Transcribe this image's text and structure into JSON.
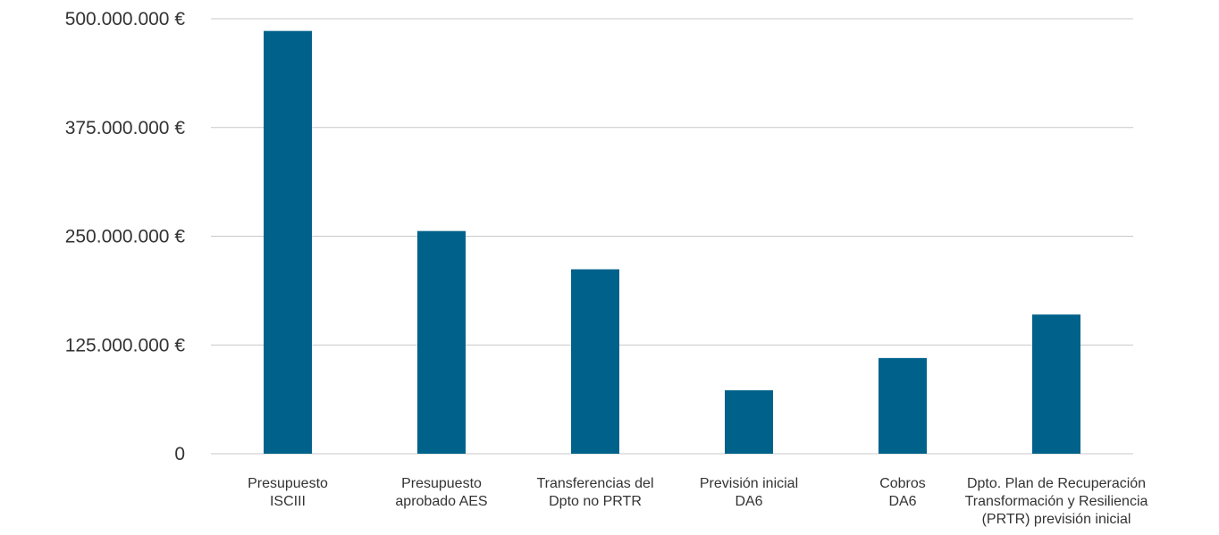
{
  "chart_data": {
    "type": "bar",
    "categories": [
      [
        "Presupuesto",
        "ISCIII"
      ],
      [
        "Presupuesto",
        "aprobado AES"
      ],
      [
        "Transferencias del",
        "Dpto no PRTR"
      ],
      [
        "Previsión inicial",
        "DA6"
      ],
      [
        "Cobros",
        "DA6"
      ],
      [
        "Dpto. Plan de Recuperación",
        "Transformación y Resiliencia",
        "(PRTR) previsión inicial"
      ]
    ],
    "values": [
      486000000,
      256000000,
      212000000,
      73000000,
      110000000,
      160000000
    ],
    "ylim": [
      0,
      500000000
    ],
    "yticks": [
      0,
      125000000,
      250000000,
      375000000,
      500000000
    ],
    "ytick_labels": [
      "0",
      "125.000.000 €",
      "250.000.000 €",
      "375.000.000 €",
      "500.000.000 €"
    ],
    "grid": true,
    "bar_color": "#00628b",
    "title": "",
    "xlabel": "",
    "ylabel": ""
  }
}
